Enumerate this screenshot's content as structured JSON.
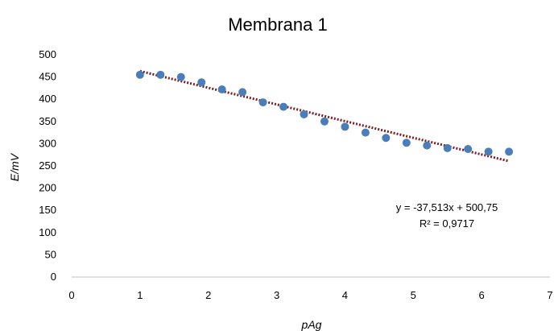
{
  "chart_data": {
    "type": "scatter",
    "title": "Membrana 1",
    "xlabel": "pAg",
    "ylabel": "E/mV",
    "xlim": [
      0,
      7
    ],
    "ylim": [
      0,
      500
    ],
    "x_ticks": [
      0,
      1,
      2,
      3,
      4,
      5,
      6,
      7
    ],
    "y_ticks": [
      0,
      50,
      100,
      150,
      200,
      250,
      300,
      350,
      400,
      450,
      500
    ],
    "grid": false,
    "legend": "none",
    "series": [
      {
        "x": [
          1.0,
          1.3,
          1.6,
          1.9,
          2.2,
          2.5,
          2.8,
          3.1,
          3.4,
          3.7,
          4.0,
          4.3,
          4.6,
          4.9,
          5.2,
          5.5,
          5.8,
          6.1,
          6.4
        ],
        "y": [
          455,
          455,
          450,
          438,
          422,
          416,
          393,
          383,
          366,
          350,
          338,
          325,
          313,
          302,
          296,
          290,
          288,
          282,
          282
        ],
        "color": "#4a7ebb"
      }
    ],
    "trendline": {
      "slope": -37.513,
      "intercept": 500.75,
      "x_range": [
        1.0,
        6.4
      ],
      "color": "#7b1f1f",
      "style": "dotted"
    },
    "annotations": {
      "equation": "y = -37,513x + 500,75",
      "r_squared": "R² = 0,9717"
    }
  }
}
